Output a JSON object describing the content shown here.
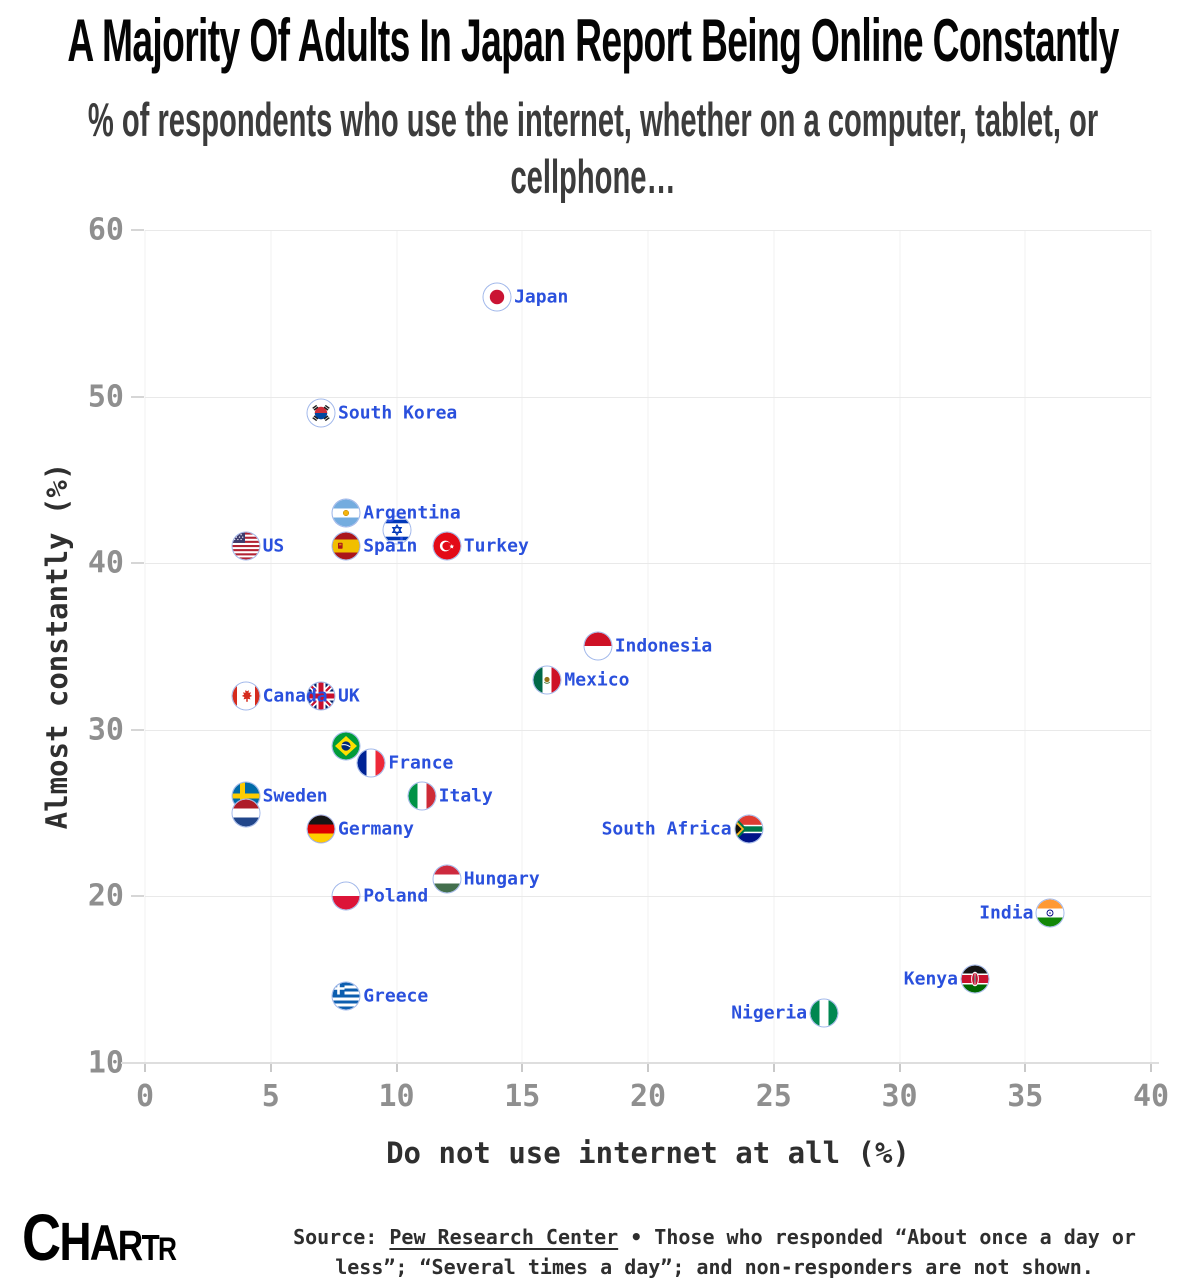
{
  "title": "A Majority Of Adults In Japan Report Being Online Constantly",
  "subtitle": "% of respondents who use the internet, whether on a computer, tablet, or cellphone…",
  "chart_data": {
    "type": "scatter",
    "xlabel": "Do not use internet at all (%)",
    "ylabel": "Almost constantly (%)",
    "xlim": [
      0,
      40
    ],
    "ylim": [
      10,
      60
    ],
    "x_ticks": [
      0,
      5,
      10,
      15,
      20,
      25,
      30,
      35,
      40
    ],
    "y_ticks": [
      10,
      20,
      30,
      40,
      50,
      60
    ],
    "grid": true,
    "marker_style": "circular country flag with light blue ring",
    "points": [
      {
        "country": "Japan",
        "flag": "jp",
        "x": 14,
        "y": 56,
        "label_side": "right"
      },
      {
        "country": "South Korea",
        "flag": "kr",
        "x": 7,
        "y": 49,
        "label_side": "right"
      },
      {
        "country": "Argentina",
        "flag": "ar",
        "x": 8,
        "y": 43,
        "label_side": "right"
      },
      {
        "country": "Israel",
        "flag": "il",
        "x": 10,
        "y": 42,
        "label_side": "none"
      },
      {
        "country": "US",
        "flag": "us",
        "x": 4,
        "y": 41,
        "label_side": "right"
      },
      {
        "country": "Spain",
        "flag": "es",
        "x": 8,
        "y": 41,
        "label_side": "right"
      },
      {
        "country": "Turkey",
        "flag": "tr",
        "x": 12,
        "y": 41,
        "label_side": "right"
      },
      {
        "country": "Indonesia",
        "flag": "id",
        "x": 18,
        "y": 35,
        "label_side": "right"
      },
      {
        "country": "Mexico",
        "flag": "mx",
        "x": 16,
        "y": 33,
        "label_side": "right"
      },
      {
        "country": "Canada",
        "flag": "ca",
        "x": 4,
        "y": 32,
        "label_side": "right"
      },
      {
        "country": "UK",
        "flag": "gb",
        "x": 7,
        "y": 32,
        "label_side": "right"
      },
      {
        "country": "Brazil",
        "flag": "br",
        "x": 8,
        "y": 29,
        "label_side": "none"
      },
      {
        "country": "France",
        "flag": "fr",
        "x": 9,
        "y": 28,
        "label_side": "right"
      },
      {
        "country": "Sweden",
        "flag": "se",
        "x": 4,
        "y": 26,
        "label_side": "right"
      },
      {
        "country": "Italy",
        "flag": "it",
        "x": 11,
        "y": 26,
        "label_side": "right"
      },
      {
        "country": "Netherlands",
        "flag": "nl",
        "x": 4,
        "y": 25,
        "label_side": "none"
      },
      {
        "country": "Germany",
        "flag": "de",
        "x": 7,
        "y": 24,
        "label_side": "right"
      },
      {
        "country": "South Africa",
        "flag": "za",
        "x": 24,
        "y": 24,
        "label_side": "left"
      },
      {
        "country": "Hungary",
        "flag": "hu",
        "x": 12,
        "y": 21,
        "label_side": "right"
      },
      {
        "country": "Poland",
        "flag": "pl",
        "x": 8,
        "y": 20,
        "label_side": "right"
      },
      {
        "country": "India",
        "flag": "in",
        "x": 36,
        "y": 19,
        "label_side": "left"
      },
      {
        "country": "Kenya",
        "flag": "ke",
        "x": 33,
        "y": 15,
        "label_side": "left"
      },
      {
        "country": "Greece",
        "flag": "gr",
        "x": 8,
        "y": 14,
        "label_side": "right"
      },
      {
        "country": "Nigeria",
        "flag": "ng",
        "x": 27,
        "y": 13,
        "label_side": "left"
      }
    ]
  },
  "footer": {
    "logo": "CHARTR",
    "source_prefix": "Source: ",
    "source_link": "Pew Research Center",
    "source_rest": " • Those who responded “About once a day or less”; “Several times a day”; and non-responders are not shown."
  },
  "colors": {
    "label_blue": "#2a50dd",
    "tick_gray": "#8f8f8f",
    "axis_title_gray": "#2f2f2f",
    "gridline": "#e9e9e9",
    "marker_ring": "#9fb6ea"
  }
}
